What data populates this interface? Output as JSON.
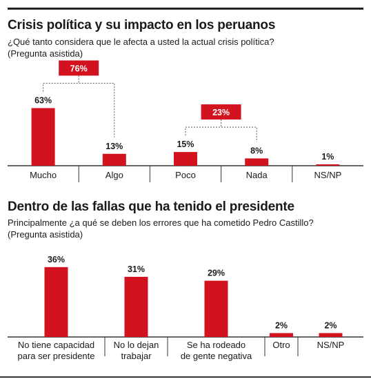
{
  "colors": {
    "bar": "#d3121f",
    "axis": "#333333",
    "dash": "#555555"
  },
  "chart_data": [
    {
      "type": "bar",
      "title": "Crisis política y su impacto en los peruanos",
      "subtitle_lines": [
        "¿Qué tanto considera que le afecta a usted la actual crisis política?",
        "(Pregunta asistida)"
      ],
      "categories": [
        "Mucho",
        "Algo",
        "Poco",
        "Nada",
        "NS/NP"
      ],
      "values": [
        63,
        13,
        15,
        8,
        1
      ],
      "value_labels": [
        "63%",
        "13%",
        "15%",
        "8%",
        "1%"
      ],
      "unit": "%",
      "groups": [
        {
          "categories": [
            "Mucho",
            "Algo"
          ],
          "label": "76%"
        },
        {
          "categories": [
            "Poco",
            "Nada"
          ],
          "label": "23%"
        }
      ]
    },
    {
      "type": "bar",
      "title": "Dentro de las fallas que ha tenido el presidente",
      "subtitle_lines": [
        "Principalmente ¿a qué se deben los errores que ha cometido Pedro Castillo?",
        "(Pregunta asistida)"
      ],
      "categories": [
        [
          "No tiene capacidad",
          "para ser presidente"
        ],
        [
          "No lo dejan",
          "trabajar"
        ],
        [
          "Se ha rodeado",
          "de gente negativa"
        ],
        [
          "Otro"
        ],
        [
          "NS/NP"
        ]
      ],
      "values": [
        36,
        31,
        29,
        2,
        2
      ],
      "value_labels": [
        "36%",
        "31%",
        "29%",
        "2%",
        "2%"
      ],
      "unit": "%"
    }
  ]
}
